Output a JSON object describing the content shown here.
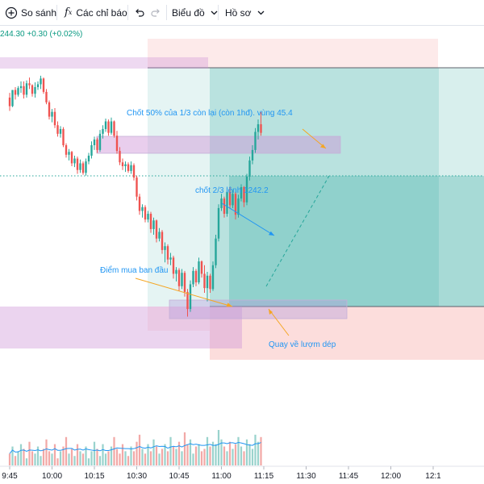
{
  "toolbar": {
    "compare_label": "So sánh",
    "indicators_label": "Các chỉ báo",
    "chart_type_label": "Biểu đồ",
    "profile_label": "Hồ sơ",
    "icons": [
      "plus-circle-icon",
      "fx-icon",
      "undo-icon",
      "redo-icon",
      "chevron-down-icon"
    ]
  },
  "header": {
    "change_text": "244.30 +0.30 (+0.02%)"
  },
  "annotations": {
    "take_profit_50": "Chốt 50% của 1/3 còn lại (còn 1hđ). vùng 45.4",
    "take_profit_23": "chốt 2/3 lệnh 1242.2",
    "entry": "Điểm mua ban đầu",
    "pullback": "Quay về lượm dép"
  },
  "colors": {
    "up": "#26a69a",
    "down": "#ef5350",
    "vol_up": "#9ad3cd",
    "vol_down": "#f2a9a7",
    "profit_zone": "#26a69a",
    "loss_zone": "#f7c9c9",
    "supply_zone": "#e1bee7",
    "annotation_text": "#2196f3",
    "annotation_arrow": "#f5a623"
  },
  "chart_data": {
    "type": "candlestick",
    "x_ticks": [
      "9:45",
      "10:00",
      "10:15",
      "10:30",
      "10:45",
      "11:00",
      "11:15",
      "11:30",
      "11:45",
      "12:00",
      "12:1"
    ],
    "bars_per_tick": 15,
    "candles": [
      [
        1249.8,
        1250.3,
        1248.4,
        1248.9
      ],
      [
        1248.9,
        1250.6,
        1248.8,
        1250.6
      ],
      [
        1250.6,
        1250.9,
        1249.6,
        1250.1
      ],
      [
        1250.1,
        1251.0,
        1249.9,
        1250.8
      ],
      [
        1250.8,
        1251.5,
        1250.3,
        1251.0
      ],
      [
        1251.0,
        1251.5,
        1249.7,
        1250.1
      ],
      [
        1250.1,
        1251.6,
        1249.8,
        1251.3
      ],
      [
        1251.3,
        1251.9,
        1250.7,
        1251.1
      ],
      [
        1251.1,
        1251.2,
        1249.9,
        1250.2
      ],
      [
        1250.2,
        1251.4,
        1249.8,
        1250.9
      ],
      [
        1250.9,
        1251.5,
        1250.6,
        1251.2
      ],
      [
        1251.2,
        1252.1,
        1250.7,
        1251.8
      ],
      [
        1251.8,
        1251.9,
        1250.2,
        1250.4
      ],
      [
        1250.4,
        1250.7,
        1249.1,
        1249.3
      ],
      [
        1249.3,
        1249.5,
        1247.5,
        1247.8
      ],
      [
        1247.8,
        1248.6,
        1247.2,
        1248.3
      ],
      [
        1248.3,
        1248.7,
        1246.6,
        1246.9
      ],
      [
        1246.9,
        1247.3,
        1245.7,
        1246.0
      ],
      [
        1246.0,
        1246.8,
        1245.6,
        1246.5
      ],
      [
        1246.5,
        1246.7,
        1244.6,
        1244.8
      ],
      [
        1244.8,
        1245.0,
        1243.5,
        1243.8
      ],
      [
        1243.8,
        1244.4,
        1243.2,
        1244.1
      ],
      [
        1244.1,
        1244.2,
        1242.6,
        1242.9
      ],
      [
        1242.9,
        1243.7,
        1242.5,
        1243.4
      ],
      [
        1243.4,
        1243.6,
        1241.8,
        1242.2
      ],
      [
        1242.2,
        1243.3,
        1241.9,
        1242.9
      ],
      [
        1242.9,
        1243.1,
        1241.7,
        1241.9
      ],
      [
        1241.9,
        1243.4,
        1241.6,
        1243.1
      ],
      [
        1243.1,
        1244.0,
        1242.8,
        1243.7
      ],
      [
        1243.7,
        1245.2,
        1243.4,
        1244.8
      ],
      [
        1244.8,
        1245.7,
        1244.3,
        1245.4
      ],
      [
        1245.4,
        1245.6,
        1244.0,
        1244.3
      ],
      [
        1244.3,
        1246.4,
        1244.1,
        1246.0
      ],
      [
        1246.0,
        1246.9,
        1245.5,
        1246.5
      ],
      [
        1246.5,
        1247.6,
        1246.2,
        1247.3
      ],
      [
        1247.3,
        1247.5,
        1245.8,
        1246.1
      ],
      [
        1246.1,
        1247.7,
        1245.9,
        1247.3
      ],
      [
        1247.3,
        1247.4,
        1245.6,
        1245.8
      ],
      [
        1245.8,
        1246.3,
        1243.9,
        1244.2
      ],
      [
        1244.2,
        1244.6,
        1242.7,
        1243.0
      ],
      [
        1243.0,
        1243.4,
        1242.2,
        1242.6
      ],
      [
        1242.6,
        1243.1,
        1242.0,
        1242.8
      ],
      [
        1242.8,
        1243.0,
        1241.9,
        1242.1
      ],
      [
        1242.1,
        1243.1,
        1241.8,
        1242.7
      ],
      [
        1242.7,
        1242.9,
        1241.1,
        1241.4
      ],
      [
        1241.4,
        1241.6,
        1239.0,
        1239.4
      ],
      [
        1239.4,
        1239.7,
        1237.5,
        1237.9
      ],
      [
        1237.9,
        1238.6,
        1237.2,
        1238.3
      ],
      [
        1238.3,
        1238.5,
        1236.7,
        1237.0
      ],
      [
        1237.0,
        1237.9,
        1236.7,
        1237.6
      ],
      [
        1237.6,
        1237.8,
        1235.6,
        1236.0
      ],
      [
        1236.0,
        1237.2,
        1235.4,
        1236.9
      ],
      [
        1236.9,
        1237.0,
        1234.6,
        1235.0
      ],
      [
        1235.0,
        1236.1,
        1234.7,
        1235.7
      ],
      [
        1235.7,
        1235.9,
        1233.4,
        1233.8
      ],
      [
        1233.8,
        1234.6,
        1232.5,
        1234.2
      ],
      [
        1234.2,
        1234.4,
        1232.3,
        1232.8
      ],
      [
        1232.8,
        1233.5,
        1232.2,
        1233.0
      ],
      [
        1233.0,
        1233.2,
        1230.8,
        1231.3
      ],
      [
        1231.3,
        1232.0,
        1230.5,
        1231.7
      ],
      [
        1231.7,
        1231.9,
        1229.5,
        1230.0
      ],
      [
        1230.0,
        1231.8,
        1229.7,
        1231.4
      ],
      [
        1231.4,
        1231.6,
        1228.9,
        1229.4
      ],
      [
        1229.4,
        1229.7,
        1226.8,
        1227.6
      ],
      [
        1227.6,
        1230.6,
        1227.3,
        1230.2
      ],
      [
        1230.2,
        1232.0,
        1229.9,
        1231.6
      ],
      [
        1231.6,
        1231.8,
        1230.0,
        1230.4
      ],
      [
        1230.4,
        1233.0,
        1230.2,
        1232.6
      ],
      [
        1232.6,
        1232.7,
        1230.9,
        1231.3
      ],
      [
        1231.3,
        1232.2,
        1229.3,
        1229.8
      ],
      [
        1229.8,
        1231.5,
        1228.4,
        1231.1
      ],
      [
        1231.1,
        1231.3,
        1229.3,
        1229.7
      ],
      [
        1229.7,
        1232.6,
        1229.5,
        1232.2
      ],
      [
        1232.2,
        1235.4,
        1231.9,
        1235.0
      ],
      [
        1235.0,
        1238.6,
        1234.7,
        1238.2
      ],
      [
        1238.2,
        1239.7,
        1237.9,
        1239.2
      ],
      [
        1239.2,
        1239.4,
        1237.2,
        1237.6
      ],
      [
        1237.6,
        1240.3,
        1237.3,
        1239.9
      ],
      [
        1239.9,
        1240.4,
        1238.1,
        1238.5
      ],
      [
        1238.5,
        1240.1,
        1238.2,
        1239.7
      ],
      [
        1239.7,
        1239.9,
        1237.0,
        1237.5
      ],
      [
        1237.5,
        1239.6,
        1237.2,
        1239.2
      ],
      [
        1239.2,
        1240.7,
        1238.9,
        1240.4
      ],
      [
        1240.4,
        1240.5,
        1238.3,
        1238.8
      ],
      [
        1238.8,
        1241.8,
        1238.5,
        1241.5
      ],
      [
        1241.5,
        1243.6,
        1241.1,
        1243.2
      ],
      [
        1243.2,
        1244.8,
        1242.8,
        1244.3
      ],
      [
        1244.3,
        1246.6,
        1244.0,
        1246.2
      ],
      [
        1246.2,
        1247.5,
        1245.4,
        1247.0
      ],
      [
        1247.0,
        1248.3,
        1245.8,
        1246.1
      ]
    ],
    "volume": [
      5,
      8,
      4,
      6,
      9,
      7,
      3,
      10,
      6,
      5,
      8,
      4,
      7,
      11,
      6,
      5,
      9,
      3,
      6,
      8,
      12,
      5,
      7,
      4,
      9,
      6,
      5,
      8,
      3,
      6,
      10,
      7,
      4,
      9,
      5,
      6,
      8,
      12,
      7,
      5,
      9,
      6,
      4,
      8,
      6,
      10,
      13,
      7,
      5,
      9,
      6,
      11,
      8,
      5,
      7,
      9,
      6,
      12,
      8,
      7,
      10,
      6,
      14,
      9,
      11,
      5,
      8,
      9,
      6,
      7,
      12,
      8,
      10,
      9,
      15,
      11,
      8,
      6,
      10,
      7,
      9,
      12,
      8,
      6,
      11,
      9,
      7,
      13,
      10,
      12
    ]
  }
}
